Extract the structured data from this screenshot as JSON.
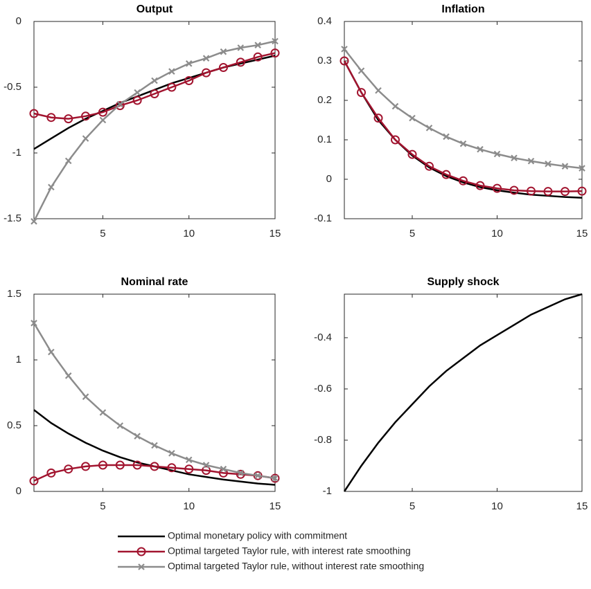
{
  "chart_data": [
    {
      "type": "line",
      "title": "Output",
      "xlim": [
        1,
        15
      ],
      "xticks": [
        5,
        10,
        15
      ],
      "ylim": [
        -1.5,
        0
      ],
      "yticks": [
        -1.5,
        -1,
        -0.5,
        0
      ],
      "x": [
        1,
        2,
        3,
        4,
        5,
        6,
        7,
        8,
        9,
        10,
        11,
        12,
        13,
        14,
        15
      ],
      "series": [
        {
          "name": "Optimal monetary policy with commitment",
          "color": "#000000",
          "values": [
            -0.97,
            -0.89,
            -0.81,
            -0.74,
            -0.68,
            -0.62,
            -0.57,
            -0.52,
            -0.47,
            -0.43,
            -0.39,
            -0.35,
            -0.32,
            -0.29,
            -0.26
          ]
        },
        {
          "name": "Optimal targeted Taylor rule, with interest rate smoothing",
          "color": "#a2142f",
          "marker": "o",
          "values": [
            -0.7,
            -0.73,
            -0.74,
            -0.72,
            -0.69,
            -0.64,
            -0.6,
            -0.55,
            -0.5,
            -0.45,
            -0.39,
            -0.35,
            -0.31,
            -0.27,
            -0.24
          ]
        },
        {
          "name": "Optimal targeted Taylor rule, without interest rate smoothing",
          "color": "#8c8c8c",
          "marker": "x",
          "values": [
            -1.52,
            -1.26,
            -1.06,
            -0.89,
            -0.75,
            -0.63,
            -0.54,
            -0.45,
            -0.38,
            -0.32,
            -0.28,
            -0.23,
            -0.2,
            -0.18,
            -0.15
          ]
        }
      ]
    },
    {
      "type": "line",
      "title": "Inflation",
      "xlim": [
        1,
        15
      ],
      "xticks": [
        5,
        10,
        15
      ],
      "ylim": [
        -0.1,
        0.4
      ],
      "yticks": [
        -0.1,
        0,
        0.1,
        0.2,
        0.3,
        0.4
      ],
      "x": [
        1,
        2,
        3,
        4,
        5,
        6,
        7,
        8,
        9,
        10,
        11,
        12,
        13,
        14,
        15
      ],
      "series": [
        {
          "color": "#000000",
          "values": [
            0.3,
            0.22,
            0.15,
            0.1,
            0.06,
            0.03,
            0.008,
            -0.008,
            -0.02,
            -0.028,
            -0.034,
            -0.039,
            -0.042,
            -0.045,
            -0.047
          ]
        },
        {
          "color": "#a2142f",
          "marker": "o",
          "values": [
            0.3,
            0.22,
            0.155,
            0.1,
            0.063,
            0.033,
            0.012,
            -0.004,
            -0.016,
            -0.023,
            -0.028,
            -0.03,
            -0.031,
            -0.031,
            -0.03
          ]
        },
        {
          "color": "#8c8c8c",
          "marker": "x",
          "values": [
            0.33,
            0.275,
            0.225,
            0.185,
            0.155,
            0.13,
            0.108,
            0.09,
            0.076,
            0.064,
            0.054,
            0.046,
            0.039,
            0.033,
            0.028
          ]
        }
      ]
    },
    {
      "type": "line",
      "title": "Nominal rate",
      "xlim": [
        1,
        15
      ],
      "xticks": [
        5,
        10,
        15
      ],
      "ylim": [
        0,
        1.5
      ],
      "yticks": [
        0,
        0.5,
        1,
        1.5
      ],
      "x": [
        1,
        2,
        3,
        4,
        5,
        6,
        7,
        8,
        9,
        10,
        11,
        12,
        13,
        14,
        15
      ],
      "series": [
        {
          "color": "#000000",
          "values": [
            0.62,
            0.52,
            0.44,
            0.37,
            0.31,
            0.26,
            0.22,
            0.19,
            0.16,
            0.13,
            0.11,
            0.09,
            0.075,
            0.06,
            0.05
          ]
        },
        {
          "color": "#a2142f",
          "marker": "o",
          "values": [
            0.08,
            0.14,
            0.17,
            0.19,
            0.2,
            0.2,
            0.2,
            0.19,
            0.18,
            0.17,
            0.16,
            0.14,
            0.13,
            0.12,
            0.1
          ]
        },
        {
          "color": "#8c8c8c",
          "marker": "x",
          "values": [
            1.28,
            1.06,
            0.88,
            0.72,
            0.6,
            0.5,
            0.42,
            0.35,
            0.29,
            0.24,
            0.2,
            0.17,
            0.14,
            0.12,
            0.1
          ]
        }
      ]
    },
    {
      "type": "line",
      "title": "Supply shock",
      "xlim": [
        1,
        15
      ],
      "xticks": [
        5,
        10,
        15
      ],
      "ylim": [
        -1,
        -0.23
      ],
      "yticks": [
        -1,
        -0.8,
        -0.6,
        -0.4
      ],
      "x": [
        1,
        2,
        3,
        4,
        5,
        6,
        7,
        8,
        9,
        10,
        11,
        12,
        13,
        14,
        15
      ],
      "series": [
        {
          "color": "#000000",
          "values": [
            -1,
            -0.9,
            -0.81,
            -0.73,
            -0.66,
            -0.59,
            -0.53,
            -0.48,
            -0.43,
            -0.39,
            -0.35,
            -0.31,
            -0.28,
            -0.25,
            -0.23
          ]
        }
      ]
    }
  ]
}
